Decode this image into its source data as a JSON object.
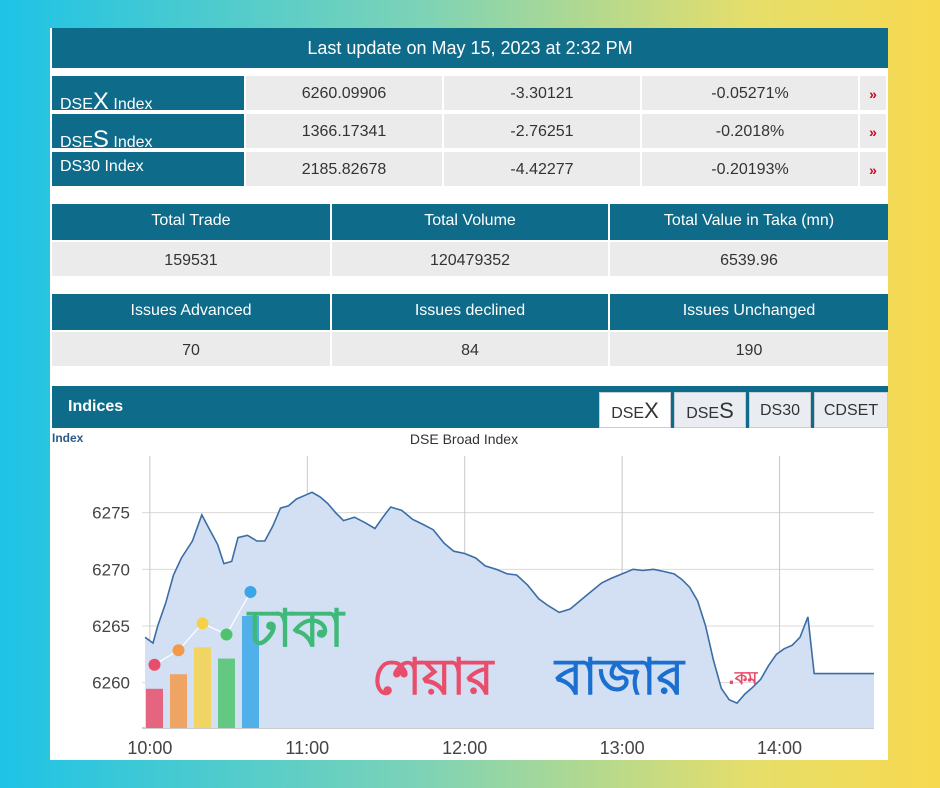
{
  "header": {
    "last_update": "Last update on May 15, 2023 at 2:32 PM"
  },
  "indices": [
    {
      "prefix": "DSE",
      "letter": "X",
      "suffix": " Index",
      "value": "6260.09906",
      "change": "-3.30121",
      "percent": "-0.05271%"
    },
    {
      "prefix": "DSE",
      "letter": "S",
      "suffix": " Index",
      "value": "1366.17341",
      "change": "-2.76251",
      "percent": "-0.2018%"
    },
    {
      "prefix": "DS30 Index",
      "letter": "",
      "suffix": "",
      "value": "2185.82678",
      "change": "-4.42277",
      "percent": "-0.20193%"
    }
  ],
  "down_arrow_glyph": "»",
  "trade_stats": {
    "headers": [
      "Total Trade",
      "Total Volume",
      "Total Value in Taka (mn)"
    ],
    "values": [
      "159531",
      "120479352",
      "6539.96"
    ]
  },
  "issue_stats": {
    "headers": [
      "Issues Advanced",
      "Issues declined",
      "Issues Unchanged"
    ],
    "values": [
      "70",
      "84",
      "190"
    ]
  },
  "indices_panel": {
    "title": "Indices",
    "tabs": [
      {
        "prefix": "DSE",
        "letter": "X"
      },
      {
        "prefix": "DSE",
        "letter": "S"
      },
      {
        "prefix": "DS30",
        "letter": ""
      },
      {
        "prefix": "CDSET",
        "letter": ""
      }
    ]
  },
  "colors": {
    "brand": "#0e6b8a",
    "down": "#d0021b",
    "area_fill": "#d3e0f3",
    "line": "#3a6ea5"
  },
  "chart_data": {
    "type": "area",
    "title": "DSE Broad Index",
    "ylabel": "Index",
    "xlabel": "",
    "x_ticks": [
      "10:00",
      "11:00",
      "12:00",
      "13:00",
      "14:00"
    ],
    "y_ticks": [
      6260,
      6265,
      6270,
      6275
    ],
    "ylim": [
      6256,
      6280
    ],
    "xlim_hours": [
      9.95,
      14.6
    ],
    "grid": true,
    "series": [
      {
        "points": [
          [
            9.97,
            6264
          ],
          [
            10.02,
            6263.5
          ],
          [
            10.05,
            6265
          ],
          [
            10.1,
            6267
          ],
          [
            10.15,
            6269.5
          ],
          [
            10.2,
            6271
          ],
          [
            10.27,
            6272.5
          ],
          [
            10.33,
            6274.8
          ],
          [
            10.38,
            6273.5
          ],
          [
            10.43,
            6272.2
          ],
          [
            10.47,
            6270.5
          ],
          [
            10.52,
            6270.7
          ],
          [
            10.56,
            6272.8
          ],
          [
            10.62,
            6273
          ],
          [
            10.68,
            6272.5
          ],
          [
            10.73,
            6272.5
          ],
          [
            10.78,
            6273.8
          ],
          [
            10.83,
            6275.4
          ],
          [
            10.88,
            6275.6
          ],
          [
            10.93,
            6276.2
          ],
          [
            10.98,
            6276.5
          ],
          [
            11.03,
            6276.8
          ],
          [
            11.08,
            6276.4
          ],
          [
            11.13,
            6275.8
          ],
          [
            11.18,
            6275
          ],
          [
            11.23,
            6274.3
          ],
          [
            11.3,
            6274.6
          ],
          [
            11.37,
            6274.1
          ],
          [
            11.43,
            6273.6
          ],
          [
            11.48,
            6274.6
          ],
          [
            11.53,
            6275.5
          ],
          [
            11.6,
            6275.2
          ],
          [
            11.67,
            6274.4
          ],
          [
            11.73,
            6274
          ],
          [
            11.8,
            6273.5
          ],
          [
            11.87,
            6272.3
          ],
          [
            11.93,
            6271.6
          ],
          [
            12.0,
            6271.4
          ],
          [
            12.07,
            6271
          ],
          [
            12.13,
            6270.3
          ],
          [
            12.2,
            6270
          ],
          [
            12.27,
            6269.6
          ],
          [
            12.33,
            6269.5
          ],
          [
            12.4,
            6268.6
          ],
          [
            12.47,
            6267.4
          ],
          [
            12.53,
            6266.8
          ],
          [
            12.6,
            6266.2
          ],
          [
            12.67,
            6266.5
          ],
          [
            12.73,
            6267.2
          ],
          [
            12.8,
            6268
          ],
          [
            12.87,
            6268.8
          ],
          [
            12.93,
            6269.2
          ],
          [
            13.0,
            6269.6
          ],
          [
            13.07,
            6270
          ],
          [
            13.13,
            6269.9
          ],
          [
            13.2,
            6270
          ],
          [
            13.27,
            6269.8
          ],
          [
            13.33,
            6269.6
          ],
          [
            13.38,
            6269.1
          ],
          [
            13.43,
            6268.4
          ],
          [
            13.48,
            6267.2
          ],
          [
            13.53,
            6265
          ],
          [
            13.58,
            6262
          ],
          [
            13.63,
            6259.5
          ],
          [
            13.68,
            6258.5
          ],
          [
            13.73,
            6258.2
          ],
          [
            13.78,
            6259
          ],
          [
            13.83,
            6259.6
          ],
          [
            13.88,
            6260.3
          ],
          [
            13.93,
            6261.5
          ],
          [
            13.98,
            6262.5
          ],
          [
            14.03,
            6263
          ],
          [
            14.08,
            6263.3
          ],
          [
            14.13,
            6264
          ],
          [
            14.18,
            6265.8
          ],
          [
            14.22,
            6260.8
          ],
          [
            14.6,
            6260.8
          ]
        ]
      }
    ]
  },
  "watermark": {
    "line1": "ঢাকা",
    "line2a": "শেয়ার",
    "line2b": "বাজার",
    "suffix": ".কম",
    "bar_colors": [
      "#e84d6b",
      "#f29a4a",
      "#f4d14a",
      "#4fc36c",
      "#3aa6e8"
    ],
    "bar_levels": [
      0.35,
      0.48,
      0.72,
      0.62,
      1.0
    ]
  }
}
